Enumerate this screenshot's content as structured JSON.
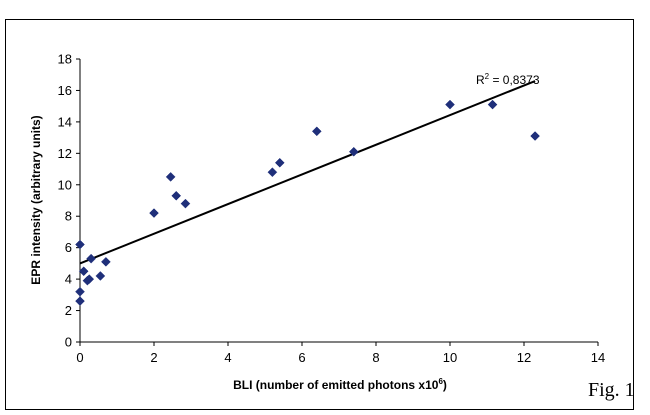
{
  "chart_data": {
    "type": "scatter",
    "xlabel": "BLI  (number of emitted photons x10",
    "xlabel_sup": "6",
    "xlabel_end": ")",
    "ylabel": "EPR intensity (arbitrary units)",
    "xlim": [
      0,
      14
    ],
    "ylim": [
      0,
      18
    ],
    "xticks": [
      "0",
      "2",
      "4",
      "6",
      "8",
      "10",
      "12",
      "14"
    ],
    "yticks": [
      "0",
      "2",
      "4",
      "6",
      "8",
      "10",
      "12",
      "14",
      "16",
      "18"
    ],
    "grid": false,
    "legend": "none",
    "marker_color": "#1f2f7a",
    "points": [
      {
        "x": 0.0,
        "y": 2.6
      },
      {
        "x": 0.0,
        "y": 3.2
      },
      {
        "x": 0.0,
        "y": 6.2
      },
      {
        "x": 0.1,
        "y": 4.5
      },
      {
        "x": 0.2,
        "y": 3.9
      },
      {
        "x": 0.25,
        "y": 4.0
      },
      {
        "x": 0.3,
        "y": 5.3
      },
      {
        "x": 0.55,
        "y": 4.2
      },
      {
        "x": 0.7,
        "y": 5.1
      },
      {
        "x": 2.0,
        "y": 8.2
      },
      {
        "x": 2.45,
        "y": 10.5
      },
      {
        "x": 2.6,
        "y": 9.3
      },
      {
        "x": 2.85,
        "y": 8.8
      },
      {
        "x": 5.2,
        "y": 10.8
      },
      {
        "x": 5.4,
        "y": 11.4
      },
      {
        "x": 6.4,
        "y": 13.4
      },
      {
        "x": 7.4,
        "y": 12.1
      },
      {
        "x": 10.0,
        "y": 15.1
      },
      {
        "x": 11.15,
        "y": 15.1
      },
      {
        "x": 12.3,
        "y": 13.1
      }
    ],
    "trendline": {
      "x": [
        0,
        12.3
      ],
      "y": [
        5.0,
        16.6
      ]
    },
    "annotation": {
      "text_main": "R",
      "text_sup": "2",
      "text_rest": " = 0,8373"
    }
  },
  "figure_label": "Fig. 1"
}
